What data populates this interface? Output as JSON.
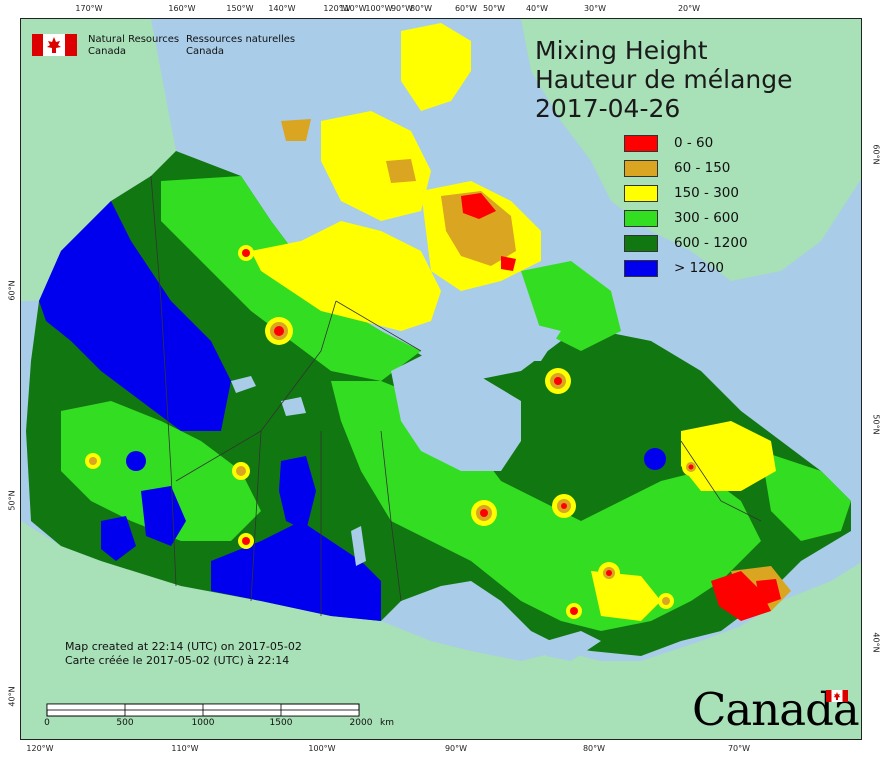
{
  "title": {
    "line1": "Mixing Height",
    "line2": "Hauteur de mélange",
    "date": "2017-04-26"
  },
  "legend": [
    {
      "label": "0 - 60",
      "color": "#ff0000"
    },
    {
      "label": "60 - 150",
      "color": "#daa520"
    },
    {
      "label": "150 - 300",
      "color": "#ffff00"
    },
    {
      "label": "300 - 600",
      "color": "#33dd22"
    },
    {
      "label": "600 - 1200",
      "color": "#117711"
    },
    {
      "label": "> 1200",
      "color": "#0000ee"
    }
  ],
  "agency": {
    "en_line1": "Natural Resources",
    "en_line2": "Canada",
    "fr_line1": "Ressources naturelles",
    "fr_line2": "Canada"
  },
  "credits": {
    "en": "Map created at 22:14 (UTC) on 2017-05-02",
    "fr": "Carte créée le 2017-05-02 (UTC) à 22:14"
  },
  "scale": {
    "labels": [
      "0",
      "500",
      "1000",
      "1500",
      "2000"
    ],
    "unit": "km"
  },
  "wordmark": "Canada",
  "graticule": {
    "top": [
      "170°W",
      "160°W",
      "150°W",
      "140°W",
      "120°W",
      "110°W",
      "100°W",
      "90°W",
      "80°W",
      "60°W",
      "50°W",
      "40°W",
      "30°W",
      "20°W"
    ],
    "bottom": [
      "120°W",
      "110°W",
      "100°W",
      "90°W",
      "80°W",
      "70°W"
    ],
    "left": [
      "60°N",
      "50°N",
      "40°N"
    ],
    "right": [
      "60°N",
      "50°N",
      "40°N"
    ]
  },
  "colors": {
    "ocean": "#a9cce8",
    "land_outside": "#a8e0b8",
    "frame": "#222222"
  }
}
